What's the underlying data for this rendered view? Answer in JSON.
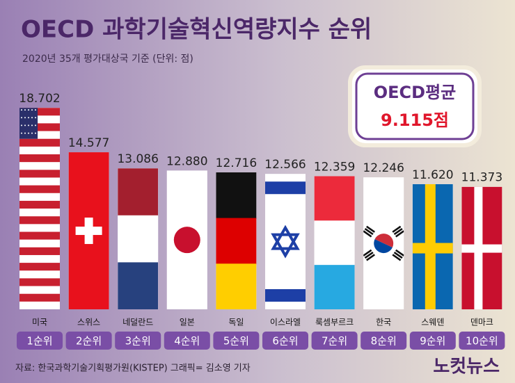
{
  "chart_data": {
    "type": "flag-bar",
    "title": "OECD 과학기술혁신역량지수 순위",
    "subtitle": "2020년 35개 평가대상국 기준 (단위: 점)",
    "categories": [
      "미국",
      "스위스",
      "네덜란드",
      "일본",
      "독일",
      "이스라엘",
      "룩셈부르크",
      "한국",
      "스웨덴",
      "덴마크"
    ],
    "values": [
      18.702,
      14.577,
      13.086,
      12.88,
      12.716,
      12.566,
      12.359,
      12.246,
      11.62,
      11.373
    ],
    "value_labels": [
      "18.702",
      "14.577",
      "13.086",
      "12.880",
      "12.716",
      "12.566",
      "12.359",
      "12.246",
      "11.620",
      "11.373"
    ],
    "ranks": [
      "1순위",
      "2순위",
      "3순위",
      "4순위",
      "5순위",
      "6순위",
      "7순위",
      "8순위",
      "9순위",
      "10순위"
    ],
    "average_title": "OECD평균",
    "average_label": "9.115점",
    "source": "자료: 한국과학기술기획평가원(KISTEP)  그래픽= 김소영 기자",
    "logo": "노컷뉴스"
  }
}
